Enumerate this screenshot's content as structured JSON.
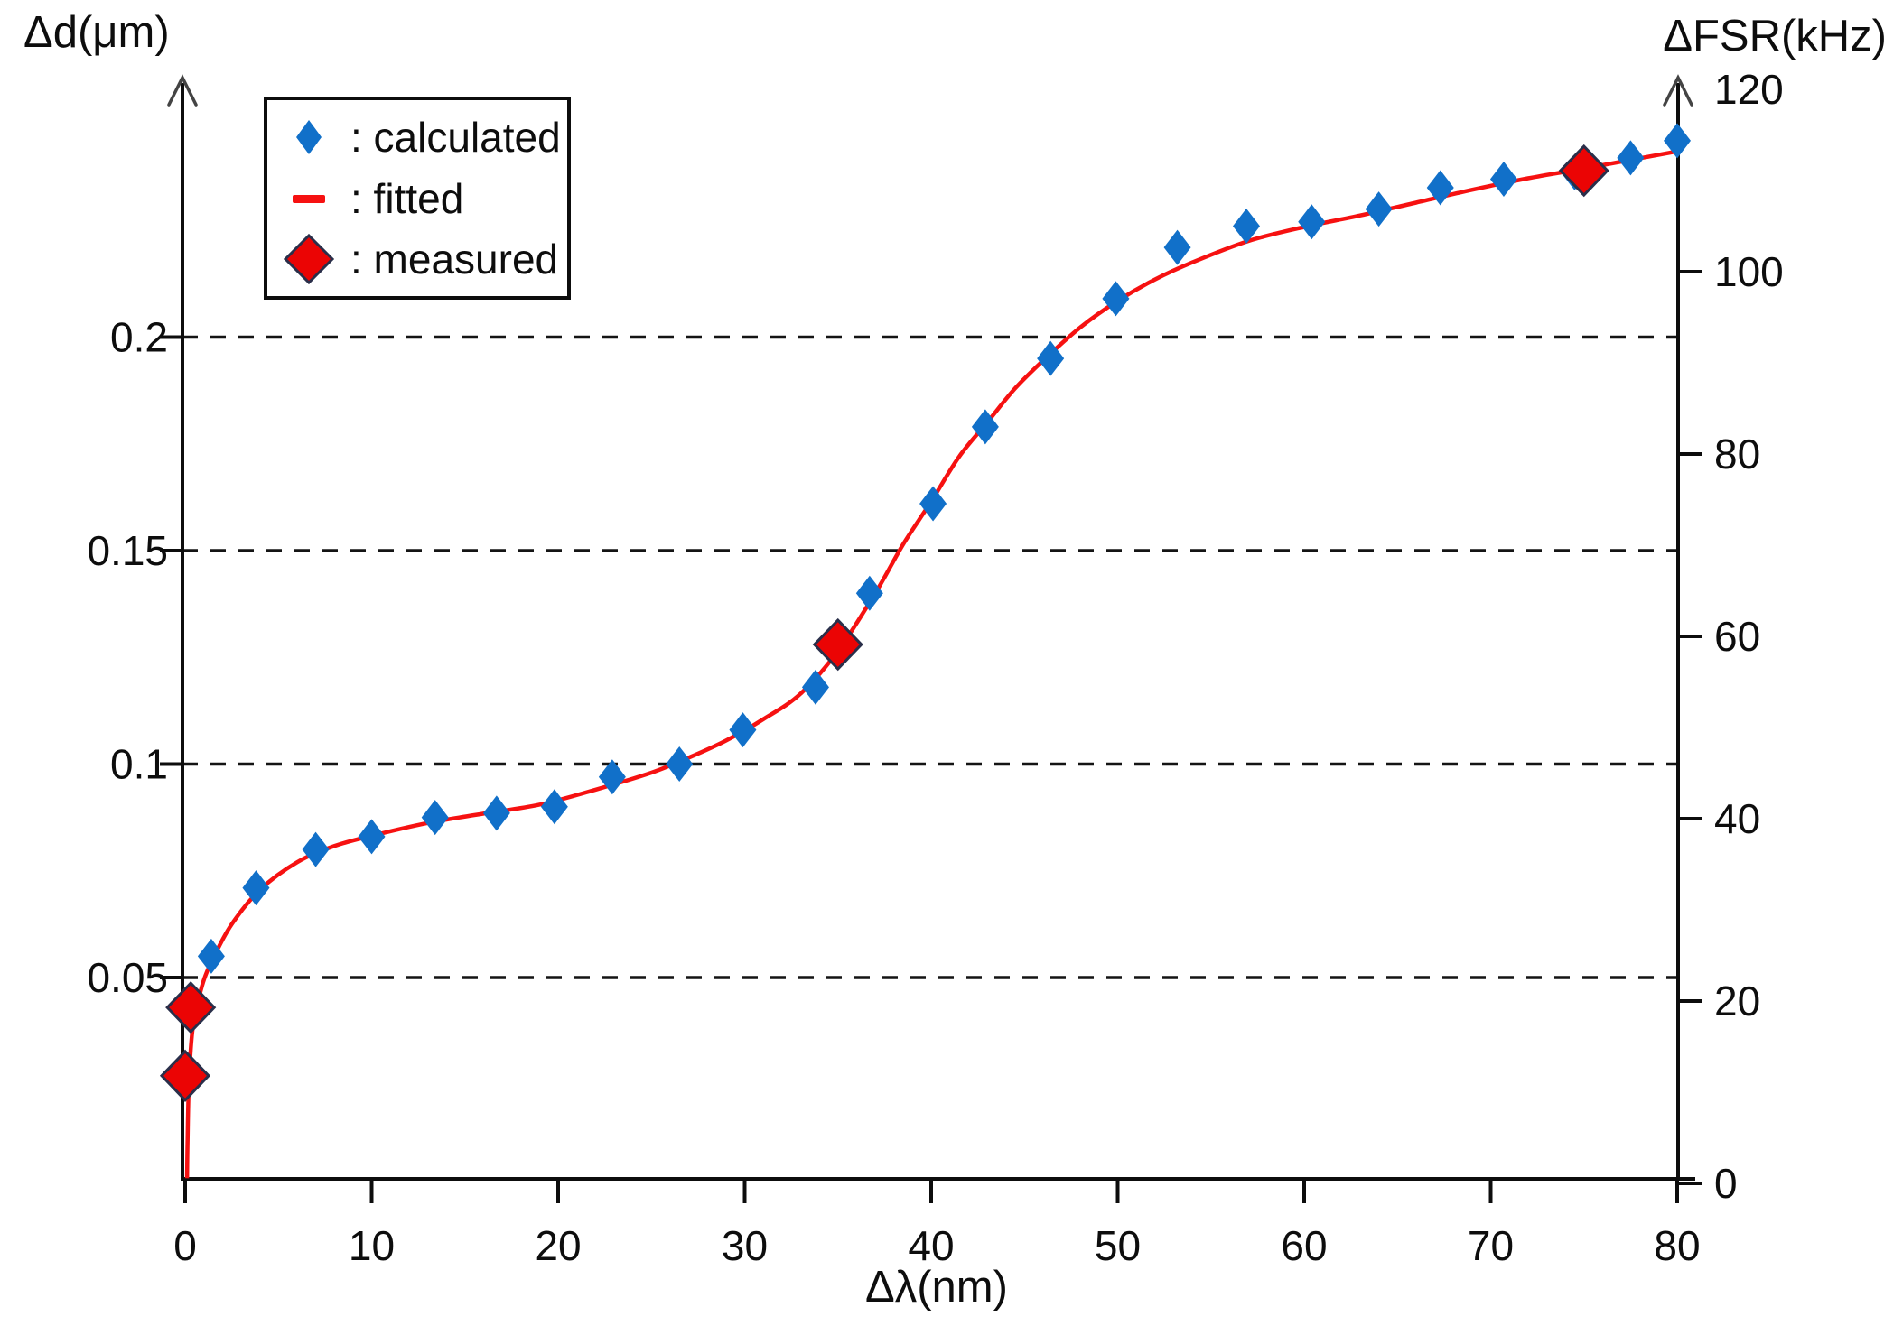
{
  "ui": {
    "axis_titles": {
      "left": "Δd(μm)",
      "right": "ΔFSR(kHz)",
      "bottom": "Δλ(nm)"
    },
    "legend": {
      "position": "top-left",
      "items": [
        {
          "id": "calculated",
          "label": ": calculated",
          "marker": "small-blue-diamond",
          "color": "#1170C9"
        },
        {
          "id": "fitted",
          "label": ": fitted",
          "marker": "red-dash",
          "color": "#F61111"
        },
        {
          "id": "measured",
          "label": ": measured",
          "marker": "large-red-diamond",
          "color": "#EB0404"
        }
      ]
    }
  },
  "chart_data": {
    "type": "scatter",
    "title": "",
    "x_axis": {
      "label": "Δλ(nm)",
      "min": 0,
      "max": 80,
      "ticks": [
        0,
        10,
        20,
        30,
        40,
        50,
        60,
        70,
        80
      ],
      "tick_labels": [
        "0",
        "10",
        "20",
        "30",
        "40",
        "50",
        "60",
        "70",
        "80"
      ]
    },
    "y_axis_left": {
      "label": "Δd(μm)",
      "min": 0,
      "max": 0.26,
      "ticks": [
        0.05,
        0.1,
        0.15,
        0.2
      ],
      "tick_labels": [
        "0.05",
        "0.1",
        "0.15",
        "0.2"
      ],
      "gridlines": "dashed-horizontal"
    },
    "y_axis_right": {
      "label": "ΔFSR(kHz)",
      "min": 0,
      "max": 120,
      "ticks": [
        0,
        20,
        40,
        60,
        80,
        100,
        120
      ],
      "tick_labels": [
        "0",
        "20",
        "40",
        "60",
        "80",
        "100",
        "120"
      ],
      "arrow_tick_without_mark": 120
    },
    "series": [
      {
        "name": "calculated",
        "kind": "scatter",
        "marker": "diamond",
        "color": "#1170C9",
        "points": [
          [
            0.0,
            0.027
          ],
          [
            0.3,
            0.043
          ],
          [
            1.4,
            0.055
          ],
          [
            3.8,
            0.071
          ],
          [
            7.0,
            0.08
          ],
          [
            10.0,
            0.083
          ],
          [
            13.4,
            0.0875
          ],
          [
            16.7,
            0.0885
          ],
          [
            19.8,
            0.09
          ],
          [
            22.9,
            0.097
          ],
          [
            26.5,
            0.1
          ],
          [
            29.9,
            0.108
          ],
          [
            33.8,
            0.118
          ],
          [
            36.7,
            0.14
          ],
          [
            40.1,
            0.161
          ],
          [
            42.9,
            0.179
          ],
          [
            46.4,
            0.195
          ],
          [
            49.9,
            0.209
          ],
          [
            53.2,
            0.221
          ],
          [
            56.9,
            0.226
          ],
          [
            60.4,
            0.227
          ],
          [
            64.0,
            0.23
          ],
          [
            67.3,
            0.235
          ],
          [
            70.7,
            0.237
          ],
          [
            74.5,
            0.2385
          ],
          [
            77.5,
            0.242
          ],
          [
            80.0,
            0.246
          ]
        ]
      },
      {
        "name": "fitted",
        "kind": "line",
        "color": "#F61111",
        "points": [
          [
            0.1,
            0.003
          ],
          [
            0.13,
            0.012
          ],
          [
            0.2,
            0.025
          ],
          [
            0.4,
            0.038
          ],
          [
            0.9,
            0.048
          ],
          [
            1.5,
            0.0545
          ],
          [
            2.5,
            0.0625
          ],
          [
            4.0,
            0.0705
          ],
          [
            6.0,
            0.077
          ],
          [
            8.0,
            0.0808
          ],
          [
            10.0,
            0.0832
          ],
          [
            13.0,
            0.0862
          ],
          [
            16.0,
            0.0884
          ],
          [
            19.0,
            0.0905
          ],
          [
            22.0,
            0.094
          ],
          [
            25.0,
            0.098
          ],
          [
            27.0,
            0.1015
          ],
          [
            29.0,
            0.1055
          ],
          [
            31.0,
            0.1105
          ],
          [
            33.0,
            0.1165
          ],
          [
            35.0,
            0.1265
          ],
          [
            37.0,
            0.14
          ],
          [
            38.5,
            0.1515
          ],
          [
            40.0,
            0.1615
          ],
          [
            41.5,
            0.172
          ],
          [
            43.0,
            0.18
          ],
          [
            44.5,
            0.188
          ],
          [
            46.0,
            0.1945
          ],
          [
            48.0,
            0.2023
          ],
          [
            50.0,
            0.2085
          ],
          [
            52.0,
            0.2135
          ],
          [
            54.0,
            0.2175
          ],
          [
            57.0,
            0.2225
          ],
          [
            60.0,
            0.2258
          ],
          [
            63.0,
            0.2285
          ],
          [
            66.0,
            0.2315
          ],
          [
            69.0,
            0.2345
          ],
          [
            72.0,
            0.2372
          ],
          [
            75.0,
            0.2395
          ],
          [
            77.5,
            0.2415
          ],
          [
            80.0,
            0.2435
          ]
        ]
      },
      {
        "name": "measured",
        "kind": "scatter",
        "marker": "diamond-large",
        "color": "#EB0404",
        "points": [
          [
            0.0,
            0.027
          ],
          [
            0.3,
            0.043
          ],
          [
            35.0,
            0.128
          ],
          [
            75.0,
            0.239
          ]
        ]
      }
    ]
  }
}
